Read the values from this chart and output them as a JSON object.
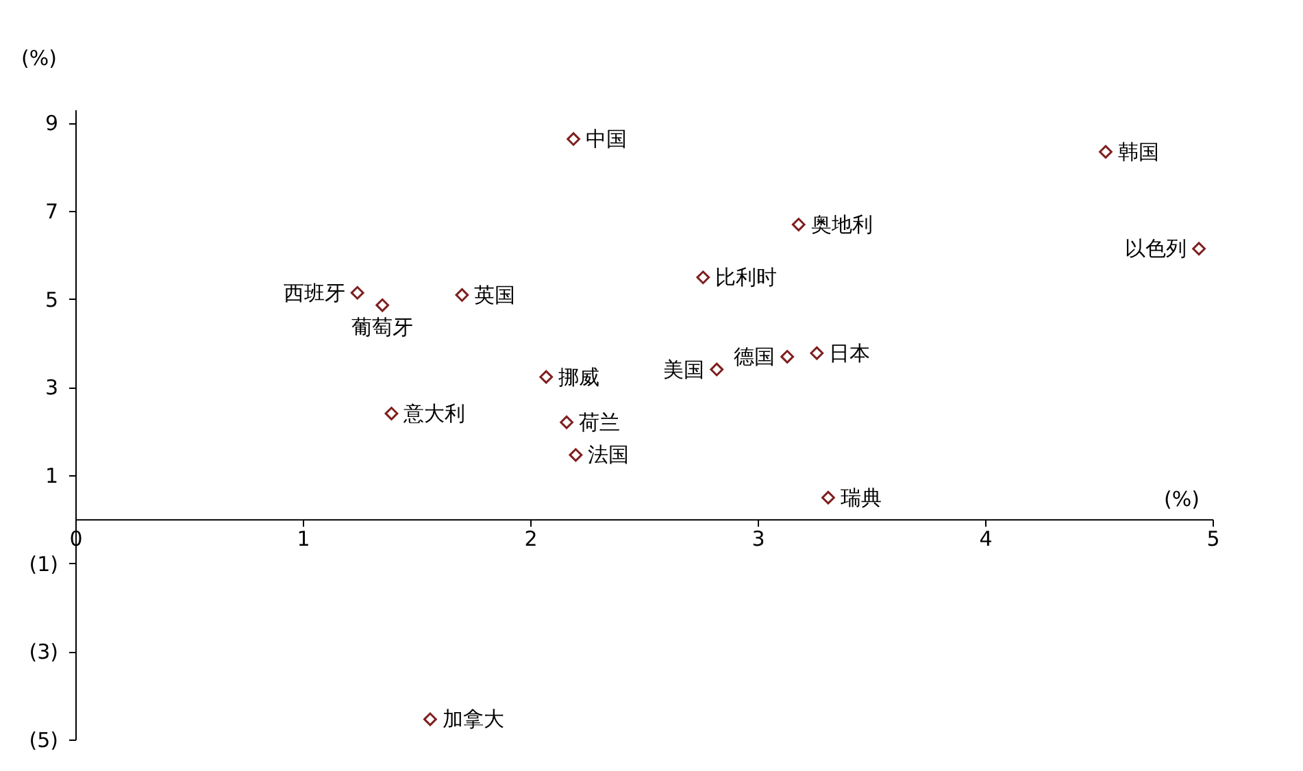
{
  "chart_data": {
    "type": "scatter",
    "xlabel": "(%)",
    "ylabel": "(%)",
    "x": [
      2.19,
      4.53,
      3.18,
      4.94,
      2.76,
      1.24,
      1.7,
      1.35,
      3.26,
      3.13,
      2.82,
      2.07,
      1.39,
      2.16,
      2.2,
      3.31,
      1.56
    ],
    "series": [
      {
        "color": "#7f1f1f",
        "values": [
          8.63,
          8.34,
          6.69,
          6.14,
          5.49,
          5.14,
          5.09,
          4.86,
          3.77,
          3.69,
          3.4,
          3.23,
          2.4,
          2.2,
          1.46,
          0.49,
          -4.54
        ]
      }
    ],
    "annotations": [
      {
        "text": "中国",
        "x": 2.19,
        "y": 8.63
      },
      {
        "text": "韩国",
        "x": 4.53,
        "y": 8.34
      },
      {
        "text": "奥地利",
        "x": 3.18,
        "y": 6.69
      },
      {
        "text": "以色列",
        "x": 4.94,
        "y": 6.14
      },
      {
        "text": "比利时",
        "x": 2.76,
        "y": 5.49
      },
      {
        "text": "西班牙",
        "x": 1.24,
        "y": 5.14
      },
      {
        "text": "英国",
        "x": 1.7,
        "y": 5.09
      },
      {
        "text": "葡萄牙",
        "x": 1.35,
        "y": 4.86
      },
      {
        "text": "日本",
        "x": 3.26,
        "y": 3.77
      },
      {
        "text": "德国",
        "x": 3.13,
        "y": 3.69
      },
      {
        "text": "美国",
        "x": 2.82,
        "y": 3.4
      },
      {
        "text": "挪威",
        "x": 2.07,
        "y": 3.23
      },
      {
        "text": "意大利",
        "x": 1.39,
        "y": 2.4
      },
      {
        "text": "荷兰",
        "x": 2.16,
        "y": 2.2
      },
      {
        "text": "法国",
        "x": 2.2,
        "y": 1.46
      },
      {
        "text": "瑞典",
        "x": 3.31,
        "y": 0.49
      },
      {
        "text": "加拿大",
        "x": 1.56,
        "y": -4.54
      }
    ],
    "xlim": [
      0,
      5
    ],
    "xticks": [
      0,
      1,
      2,
      3,
      4,
      5
    ],
    "ylim": [
      -5,
      9.3
    ],
    "yticks": [
      9,
      7,
      5,
      3,
      1,
      {
        "value": -1,
        "label": "(1)"
      },
      {
        "value": -3,
        "label": "(3)"
      },
      {
        "value": -5,
        "label": "(5)"
      }
    ],
    "marker": "diamond",
    "grid": false
  }
}
